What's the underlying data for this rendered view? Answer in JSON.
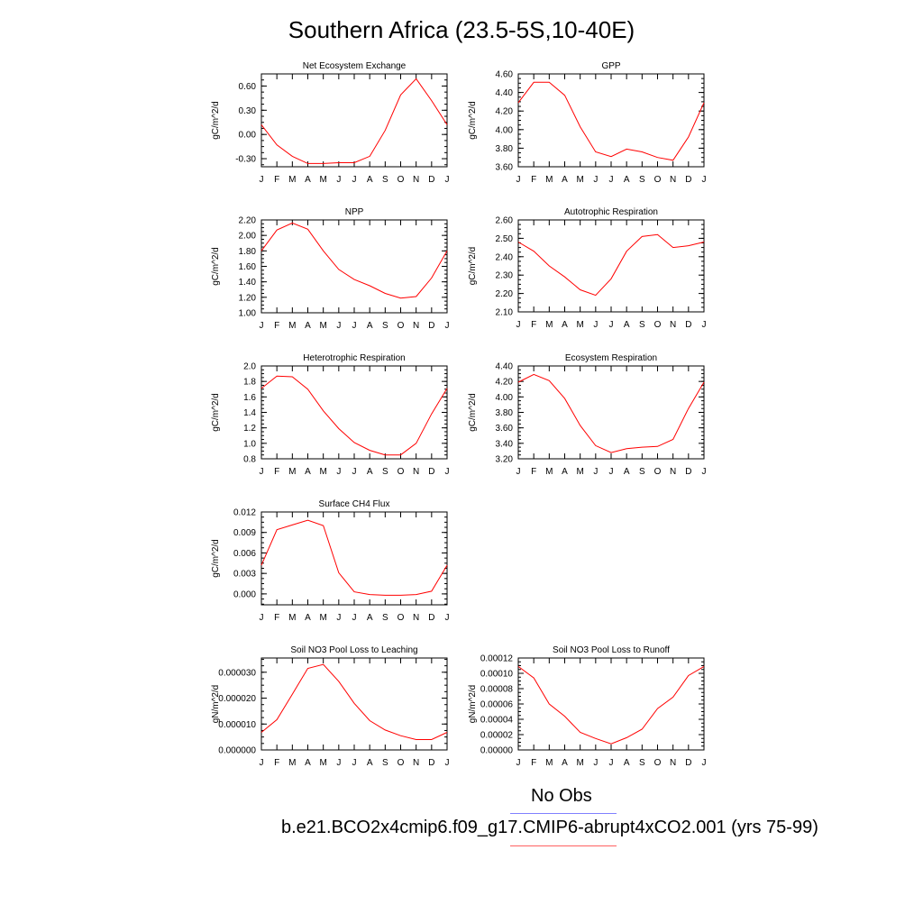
{
  "page": {
    "title": "Southern Africa (23.5-5S,10-40E)"
  },
  "legend": {
    "obs_label": "No Obs",
    "obs_color": "#8080ff",
    "model_label": "b.e21.BCO2x4cmip6.f09_g17.CMIP6-abrupt4xCO2.001 (yrs 75-99)",
    "model_color": "#ff0000"
  },
  "chart_data": [
    {
      "type": "line",
      "title": "Net Ecosystem Exchange",
      "ylabel": "gC/m^2/d",
      "x": [
        "J",
        "F",
        "M",
        "A",
        "M",
        "J",
        "J",
        "A",
        "S",
        "O",
        "N",
        "D",
        "J"
      ],
      "values": [
        0.12,
        -0.13,
        -0.27,
        -0.36,
        -0.36,
        -0.35,
        -0.35,
        -0.27,
        0.05,
        0.49,
        0.69,
        0.42,
        0.12
      ],
      "ylim": [
        -0.4,
        0.75
      ],
      "yticks": [
        -0.3,
        0.0,
        0.3,
        0.6
      ],
      "ytick_labels": [
        "-0.30",
        "0.00",
        "0.30",
        "0.60"
      ],
      "color": "#ff0000"
    },
    {
      "type": "line",
      "title": "GPP",
      "ylabel": "gC/m^2/d",
      "x": [
        "J",
        "F",
        "M",
        "A",
        "M",
        "J",
        "J",
        "A",
        "S",
        "O",
        "N",
        "D",
        "J"
      ],
      "values": [
        4.29,
        4.51,
        4.51,
        4.37,
        4.03,
        3.76,
        3.71,
        3.79,
        3.76,
        3.7,
        3.67,
        3.92,
        4.29
      ],
      "ylim": [
        3.6,
        4.6
      ],
      "yticks": [
        3.6,
        3.8,
        4.0,
        4.2,
        4.4,
        4.6
      ],
      "ytick_labels": [
        "3.60",
        "3.80",
        "4.00",
        "4.20",
        "4.40",
        "4.60"
      ],
      "color": "#ff0000"
    },
    {
      "type": "line",
      "title": "NPP",
      "ylabel": "gC/m^2/d",
      "x": [
        "J",
        "F",
        "M",
        "A",
        "M",
        "J",
        "J",
        "A",
        "S",
        "O",
        "N",
        "D",
        "J"
      ],
      "values": [
        1.8,
        2.07,
        2.16,
        2.08,
        1.8,
        1.56,
        1.43,
        1.35,
        1.25,
        1.19,
        1.21,
        1.45,
        1.8
      ],
      "ylim": [
        1.0,
        2.2
      ],
      "yticks": [
        1.0,
        1.2,
        1.4,
        1.6,
        1.8,
        2.0,
        2.2
      ],
      "ytick_labels": [
        "1.00",
        "1.20",
        "1.40",
        "1.60",
        "1.80",
        "2.00",
        "2.20"
      ],
      "color": "#ff0000"
    },
    {
      "type": "line",
      "title": "Autotrophic Respiration",
      "ylabel": "gC/m^2/d",
      "x": [
        "J",
        "F",
        "M",
        "A",
        "M",
        "J",
        "J",
        "A",
        "S",
        "O",
        "N",
        "D",
        "J"
      ],
      "values": [
        2.48,
        2.43,
        2.35,
        2.29,
        2.22,
        2.19,
        2.28,
        2.43,
        2.51,
        2.52,
        2.45,
        2.46,
        2.48
      ],
      "ylim": [
        2.1,
        2.6
      ],
      "yticks": [
        2.1,
        2.2,
        2.3,
        2.4,
        2.5,
        2.6
      ],
      "ytick_labels": [
        "2.10",
        "2.20",
        "2.30",
        "2.40",
        "2.50",
        "2.60"
      ],
      "color": "#ff0000"
    },
    {
      "type": "line",
      "title": "Heterotrophic Respiration",
      "ylabel": "gC/m^2/d",
      "x": [
        "J",
        "F",
        "M",
        "A",
        "M",
        "J",
        "J",
        "A",
        "S",
        "O",
        "N",
        "D",
        "J"
      ],
      "values": [
        1.71,
        1.87,
        1.86,
        1.7,
        1.42,
        1.19,
        1.01,
        0.91,
        0.85,
        0.85,
        1.0,
        1.38,
        1.71
      ],
      "ylim": [
        0.8,
        2.0
      ],
      "yticks": [
        0.8,
        1.0,
        1.2,
        1.4,
        1.6,
        1.8,
        2.0
      ],
      "ytick_labels": [
        "0.8",
        "1.0",
        "1.2",
        "1.4",
        "1.6",
        "1.8",
        "2.0"
      ],
      "color": "#ff0000"
    },
    {
      "type": "line",
      "title": "Ecosystem Respiration",
      "ylabel": "gC/m^2/d",
      "x": [
        "J",
        "F",
        "M",
        "A",
        "M",
        "J",
        "J",
        "A",
        "S",
        "O",
        "N",
        "D",
        "J"
      ],
      "values": [
        4.19,
        4.29,
        4.21,
        3.98,
        3.63,
        3.37,
        3.28,
        3.33,
        3.35,
        3.36,
        3.45,
        3.85,
        4.19
      ],
      "ylim": [
        3.2,
        4.4
      ],
      "yticks": [
        3.2,
        3.4,
        3.6,
        3.8,
        4.0,
        4.2,
        4.4
      ],
      "ytick_labels": [
        "3.20",
        "3.40",
        "3.60",
        "3.80",
        "4.00",
        "4.20",
        "4.40"
      ],
      "color": "#ff0000"
    },
    {
      "type": "line",
      "title": "Surface CH4 Flux",
      "ylabel": "gC/m^2/d",
      "x": [
        "J",
        "F",
        "M",
        "A",
        "M",
        "J",
        "J",
        "A",
        "S",
        "O",
        "N",
        "D",
        "J"
      ],
      "values": [
        0.0042,
        0.0094,
        0.0101,
        0.0108,
        0.01,
        0.0031,
        0.0003,
        -0.0001,
        -0.0002,
        -0.0002,
        -0.0001,
        0.0004,
        0.0042
      ],
      "ylim": [
        -0.0016,
        0.012
      ],
      "yticks": [
        0.0,
        0.003,
        0.006,
        0.009,
        0.012
      ],
      "ytick_labels": [
        "0.000",
        "0.003",
        "0.006",
        "0.009",
        "0.012"
      ],
      "color": "#ff0000"
    },
    {
      "type": "line",
      "title": "Soil NO3 Pool Loss to Leaching",
      "ylabel": "gN/m^2/d",
      "x": [
        "J",
        "F",
        "M",
        "A",
        "M",
        "J",
        "J",
        "A",
        "S",
        "O",
        "N",
        "D",
        "J"
      ],
      "values": [
        6.8e-06,
        1.17e-05,
        2.15e-05,
        3.15e-05,
        3.3e-05,
        2.65e-05,
        1.8e-05,
        1.13e-05,
        7.7e-06,
        5.5e-06,
        4e-06,
        4e-06,
        6.8e-06
      ],
      "ylim": [
        0.0,
        3.55e-05
      ],
      "yticks": [
        0.0,
        1e-05,
        2e-05,
        3e-05
      ],
      "ytick_labels": [
        "0.000000",
        "0.000010",
        "0.000020",
        "0.000030"
      ],
      "color": "#ff0000"
    },
    {
      "type": "line",
      "title": "Soil NO3 Pool Loss to Runoff",
      "ylabel": "gN/m^2/d",
      "x": [
        "J",
        "F",
        "M",
        "A",
        "M",
        "J",
        "J",
        "A",
        "S",
        "O",
        "N",
        "D",
        "J"
      ],
      "values": [
        0.000109,
        9.4e-05,
        6e-05,
        4.4e-05,
        2.3e-05,
        1.5e-05,
        8e-06,
        1.6e-05,
        2.7e-05,
        5.4e-05,
        6.9e-05,
        9.7e-05,
        0.000109
      ],
      "ylim": [
        0.0,
        0.00012
      ],
      "yticks": [
        0.0,
        2e-05,
        4e-05,
        6e-05,
        8e-05,
        0.0001,
        0.00012
      ],
      "ytick_labels": [
        "0.00000",
        "0.00002",
        "0.00004",
        "0.00006",
        "0.00008",
        "0.00010",
        "0.00012"
      ],
      "color": "#ff0000"
    }
  ]
}
